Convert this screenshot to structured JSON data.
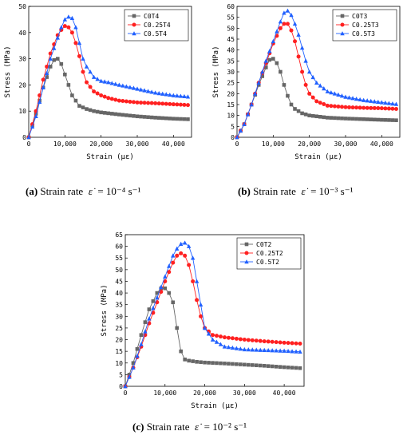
{
  "chart_data": [
    {
      "type": "line",
      "panel": "a",
      "xlabel": "Strain (με)",
      "ylabel": "Stress (MPa)",
      "xlim": [
        0,
        45000
      ],
      "ylim": [
        0,
        50
      ],
      "xticks": [
        0,
        10000,
        20000,
        30000,
        40000
      ],
      "xtick_labels": [
        "0",
        "10,000",
        "20,000",
        "30,000",
        "40,000"
      ],
      "yticks": [
        0,
        10,
        20,
        30,
        40,
        50
      ],
      "legend": "top-right",
      "series": [
        {
          "name": "C0T4",
          "color": "#666666",
          "marker": "square",
          "x": [
            0,
            2000,
            4000,
            6000,
            7000,
            8000,
            9000,
            10000,
            11000,
            12000,
            14000,
            16000,
            18000,
            20000,
            25000,
            30000,
            35000,
            40000,
            44000
          ],
          "y": [
            0,
            9,
            19,
            27,
            29.5,
            30,
            28,
            24,
            20,
            16,
            12,
            10.8,
            10,
            9.5,
            8.7,
            8,
            7.5,
            7.1,
            6.9
          ]
        },
        {
          "name": "C0.25T4",
          "color": "#ff2020",
          "marker": "circle",
          "x": [
            0,
            2000,
            4000,
            6000,
            8000,
            9000,
            10000,
            11000,
            12000,
            13000,
            14000,
            15000,
            16000,
            18000,
            20000,
            22000,
            25000,
            30000,
            35000,
            40000,
            44000
          ],
          "y": [
            0,
            10,
            22,
            32,
            39,
            41,
            42.5,
            42,
            40,
            36,
            31,
            25,
            21,
            17.5,
            16,
            15,
            14,
            13.3,
            13,
            12.6,
            12.3
          ]
        },
        {
          "name": "C0.5T4",
          "color": "#2060ff",
          "marker": "triangle",
          "x": [
            0,
            2000,
            4000,
            6000,
            8000,
            9000,
            10000,
            11000,
            12000,
            13000,
            14000,
            15000,
            16000,
            18000,
            20000,
            22000,
            25000,
            30000,
            35000,
            40000,
            44000
          ],
          "y": [
            0,
            8,
            19,
            30,
            38,
            42,
            45,
            46,
            45.5,
            42,
            36,
            30,
            27,
            23,
            21.5,
            21,
            20,
            18.5,
            17,
            16,
            15.5
          ]
        }
      ]
    },
    {
      "type": "line",
      "panel": "b",
      "xlabel": "Strain (με)",
      "ylabel": "Stress (MPa)",
      "xlim": [
        0,
        45000
      ],
      "ylim": [
        0,
        60
      ],
      "xticks": [
        0,
        10000,
        20000,
        30000,
        40000
      ],
      "xtick_labels": [
        "0",
        "10,000",
        "20,000",
        "30,000",
        "40,000"
      ],
      "yticks": [
        0,
        5,
        10,
        15,
        20,
        25,
        30,
        35,
        40,
        45,
        50,
        55,
        60
      ],
      "legend": "top-right",
      "series": [
        {
          "name": "C0T3",
          "color": "#666666",
          "marker": "square",
          "x": [
            0,
            2000,
            4000,
            6000,
            8000,
            9000,
            10000,
            11000,
            12000,
            13000,
            14000,
            15000,
            16000,
            18000,
            20000,
            25000,
            30000,
            35000,
            40000,
            44000
          ],
          "y": [
            0,
            6,
            15,
            24,
            32,
            35.5,
            36,
            34,
            30,
            24,
            19,
            15,
            13,
            11,
            10,
            9,
            8.6,
            8.3,
            8,
            7.8
          ]
        },
        {
          "name": "C0.25T3",
          "color": "#ff2020",
          "marker": "circle",
          "x": [
            0,
            2000,
            4000,
            6000,
            8000,
            10000,
            12000,
            13000,
            14000,
            15000,
            16000,
            17000,
            18000,
            19000,
            20000,
            22000,
            25000,
            30000,
            35000,
            40000,
            44000
          ],
          "y": [
            0,
            6,
            15,
            25,
            34,
            43,
            50,
            52,
            52,
            49,
            44,
            37,
            30,
            24,
            20,
            16.5,
            14.5,
            13.8,
            13.5,
            13.3,
            13
          ]
        },
        {
          "name": "C0.5T3",
          "color": "#2060ff",
          "marker": "triangle",
          "x": [
            0,
            2000,
            4000,
            6000,
            8000,
            10000,
            12000,
            13000,
            14000,
            15000,
            16000,
            17000,
            18000,
            19000,
            20000,
            22000,
            25000,
            30000,
            35000,
            40000,
            44000
          ],
          "y": [
            0,
            6,
            15,
            25,
            35,
            44,
            53,
            57,
            58,
            56,
            52,
            47,
            41,
            35,
            30,
            25,
            21,
            18.5,
            17,
            16,
            15.2
          ]
        }
      ]
    },
    {
      "type": "line",
      "panel": "c",
      "xlabel": "Strain (με)",
      "ylabel": "Stress (MPa)",
      "xlim": [
        0,
        45000
      ],
      "ylim": [
        0,
        65
      ],
      "xticks": [
        0,
        10000,
        20000,
        30000,
        40000
      ],
      "xtick_labels": [
        "0",
        "10,000",
        "20,000",
        "30,000",
        "40,000"
      ],
      "yticks": [
        0,
        5,
        10,
        15,
        20,
        25,
        30,
        35,
        40,
        45,
        50,
        55,
        60,
        65
      ],
      "legend": "top-right",
      "series": [
        {
          "name": "C0T2",
          "color": "#666666",
          "marker": "square",
          "x": [
            0,
            2000,
            4000,
            6000,
            8000,
            9000,
            10000,
            11000,
            12000,
            13000,
            14000,
            15000,
            16000,
            18000,
            20000,
            25000,
            30000,
            35000,
            40000,
            44000
          ],
          "y": [
            0,
            10,
            22,
            33,
            40,
            42,
            42,
            40,
            36,
            25,
            15,
            11.5,
            11,
            10.5,
            10.2,
            9.8,
            9.3,
            8.8,
            8.2,
            7.8
          ]
        },
        {
          "name": "C0.25T2",
          "color": "#ff2020",
          "marker": "circle",
          "x": [
            0,
            2000,
            4000,
            6000,
            8000,
            10000,
            12000,
            13000,
            14000,
            15000,
            16000,
            17000,
            18000,
            19000,
            20000,
            22000,
            25000,
            30000,
            35000,
            40000,
            44000
          ],
          "y": [
            0,
            8,
            17,
            27,
            36,
            45,
            53,
            56,
            57,
            56,
            52,
            45,
            37,
            30,
            25,
            22,
            21,
            20,
            19.3,
            18.7,
            18.3
          ]
        },
        {
          "name": "C0.5T2",
          "color": "#2060ff",
          "marker": "triangle",
          "x": [
            0,
            2000,
            4000,
            6000,
            8000,
            10000,
            12000,
            13000,
            14000,
            15000,
            16000,
            17000,
            18000,
            19000,
            20000,
            22000,
            25000,
            30000,
            35000,
            40000,
            44000
          ],
          "y": [
            0,
            8,
            18,
            29,
            38,
            47,
            56,
            59,
            61,
            61.5,
            60,
            55,
            45,
            35,
            25,
            20,
            17,
            15.8,
            15.5,
            15.2,
            14.8
          ]
        }
      ]
    }
  ],
  "captions": [
    {
      "label": "(a)",
      "text": "Strain rate",
      "symbol": "ε̇",
      "value": "= 10⁻⁴ s⁻¹"
    },
    {
      "label": "(b)",
      "text": "Strain rate",
      "symbol": "ε̇",
      "value": "= 10⁻³ s⁻¹"
    },
    {
      "label": "(c)",
      "text": "Strain rate",
      "symbol": "ε̇",
      "value": "= 10⁻² s⁻¹"
    }
  ]
}
